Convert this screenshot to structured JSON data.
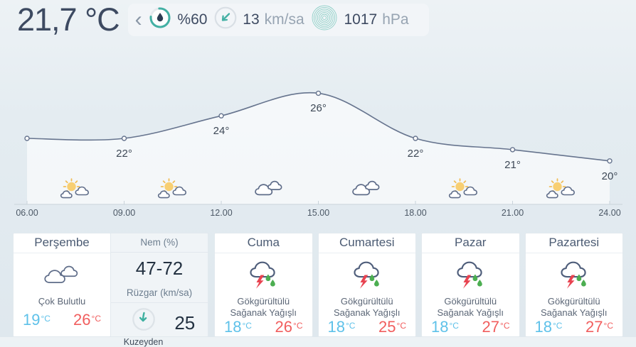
{
  "header": {
    "current_temp": "21,7 °C",
    "chevron": "‹",
    "metrics": [
      {
        "icon": "humidity-gauge-icon",
        "value": "%60",
        "unit": ""
      },
      {
        "icon": "wind-direction-icon",
        "value": "13",
        "unit": "km/sa"
      },
      {
        "icon": "pressure-rings-icon",
        "value": "1017",
        "unit": "hPa"
      }
    ]
  },
  "chart_data": {
    "type": "line",
    "title": "",
    "x": [
      "06.00",
      "09.00",
      "12.00",
      "15.00",
      "18.00",
      "21.00",
      "24.00"
    ],
    "series": [
      {
        "name": "temperature",
        "values": [
          22,
          22,
          24,
          26,
          22,
          21,
          20
        ]
      }
    ],
    "point_labels": [
      "",
      "22°",
      "24°",
      "26°",
      "22°",
      "21°",
      "20°"
    ],
    "icons": [
      "partly-sunny",
      "partly-sunny",
      "cloudy",
      "cloudy",
      "partly-sunny",
      "partly-sunny"
    ],
    "ylim": [
      19.5,
      27
    ],
    "grid": false,
    "line_color": "#66748e",
    "area_fill": "rgba(255,255,255,0.62)",
    "axis_color": "#c9d3da"
  },
  "stats": {
    "humidity_label": "Nem (%)",
    "humidity_value": "47-72",
    "wind_label": "Rüzgar (km/sa)",
    "wind_value": "25",
    "wind_direction": "Kuzeyden"
  },
  "units": {
    "deg": "°C"
  },
  "forecast": {
    "days": [
      {
        "label": "Perşembe",
        "condition": "Çok Bulutlu",
        "icon": "cloudy-large",
        "min": "19",
        "max": "26"
      },
      {
        "label": "Cuma",
        "condition": "Gökgürültülü Sağanak Yağışlı",
        "icon": "thunderstorm",
        "min": "18",
        "max": "26"
      },
      {
        "label": "Cumartesi",
        "condition": "Gökgürültülü Sağanak Yağışlı",
        "icon": "thunderstorm",
        "min": "18",
        "max": "25"
      },
      {
        "label": "Pazar",
        "condition": "Gökgürültülü Sağanak Yağışlı",
        "icon": "thunderstorm",
        "min": "18",
        "max": "27"
      },
      {
        "label": "Pazartesi",
        "condition": "Gökgürültülü Sağanak Yağışlı",
        "icon": "thunderstorm",
        "min": "18",
        "max": "27"
      }
    ]
  },
  "colors": {
    "teal": "#43b0a4",
    "dark_text": "#3d4a61",
    "min_temp_blue": "#5ec1e9",
    "max_temp_red": "#f15e5e",
    "thunder_bolt_red": "#e84350",
    "rain_drop_green": "#4cae51",
    "sun_yellow": "#f8cf72"
  }
}
